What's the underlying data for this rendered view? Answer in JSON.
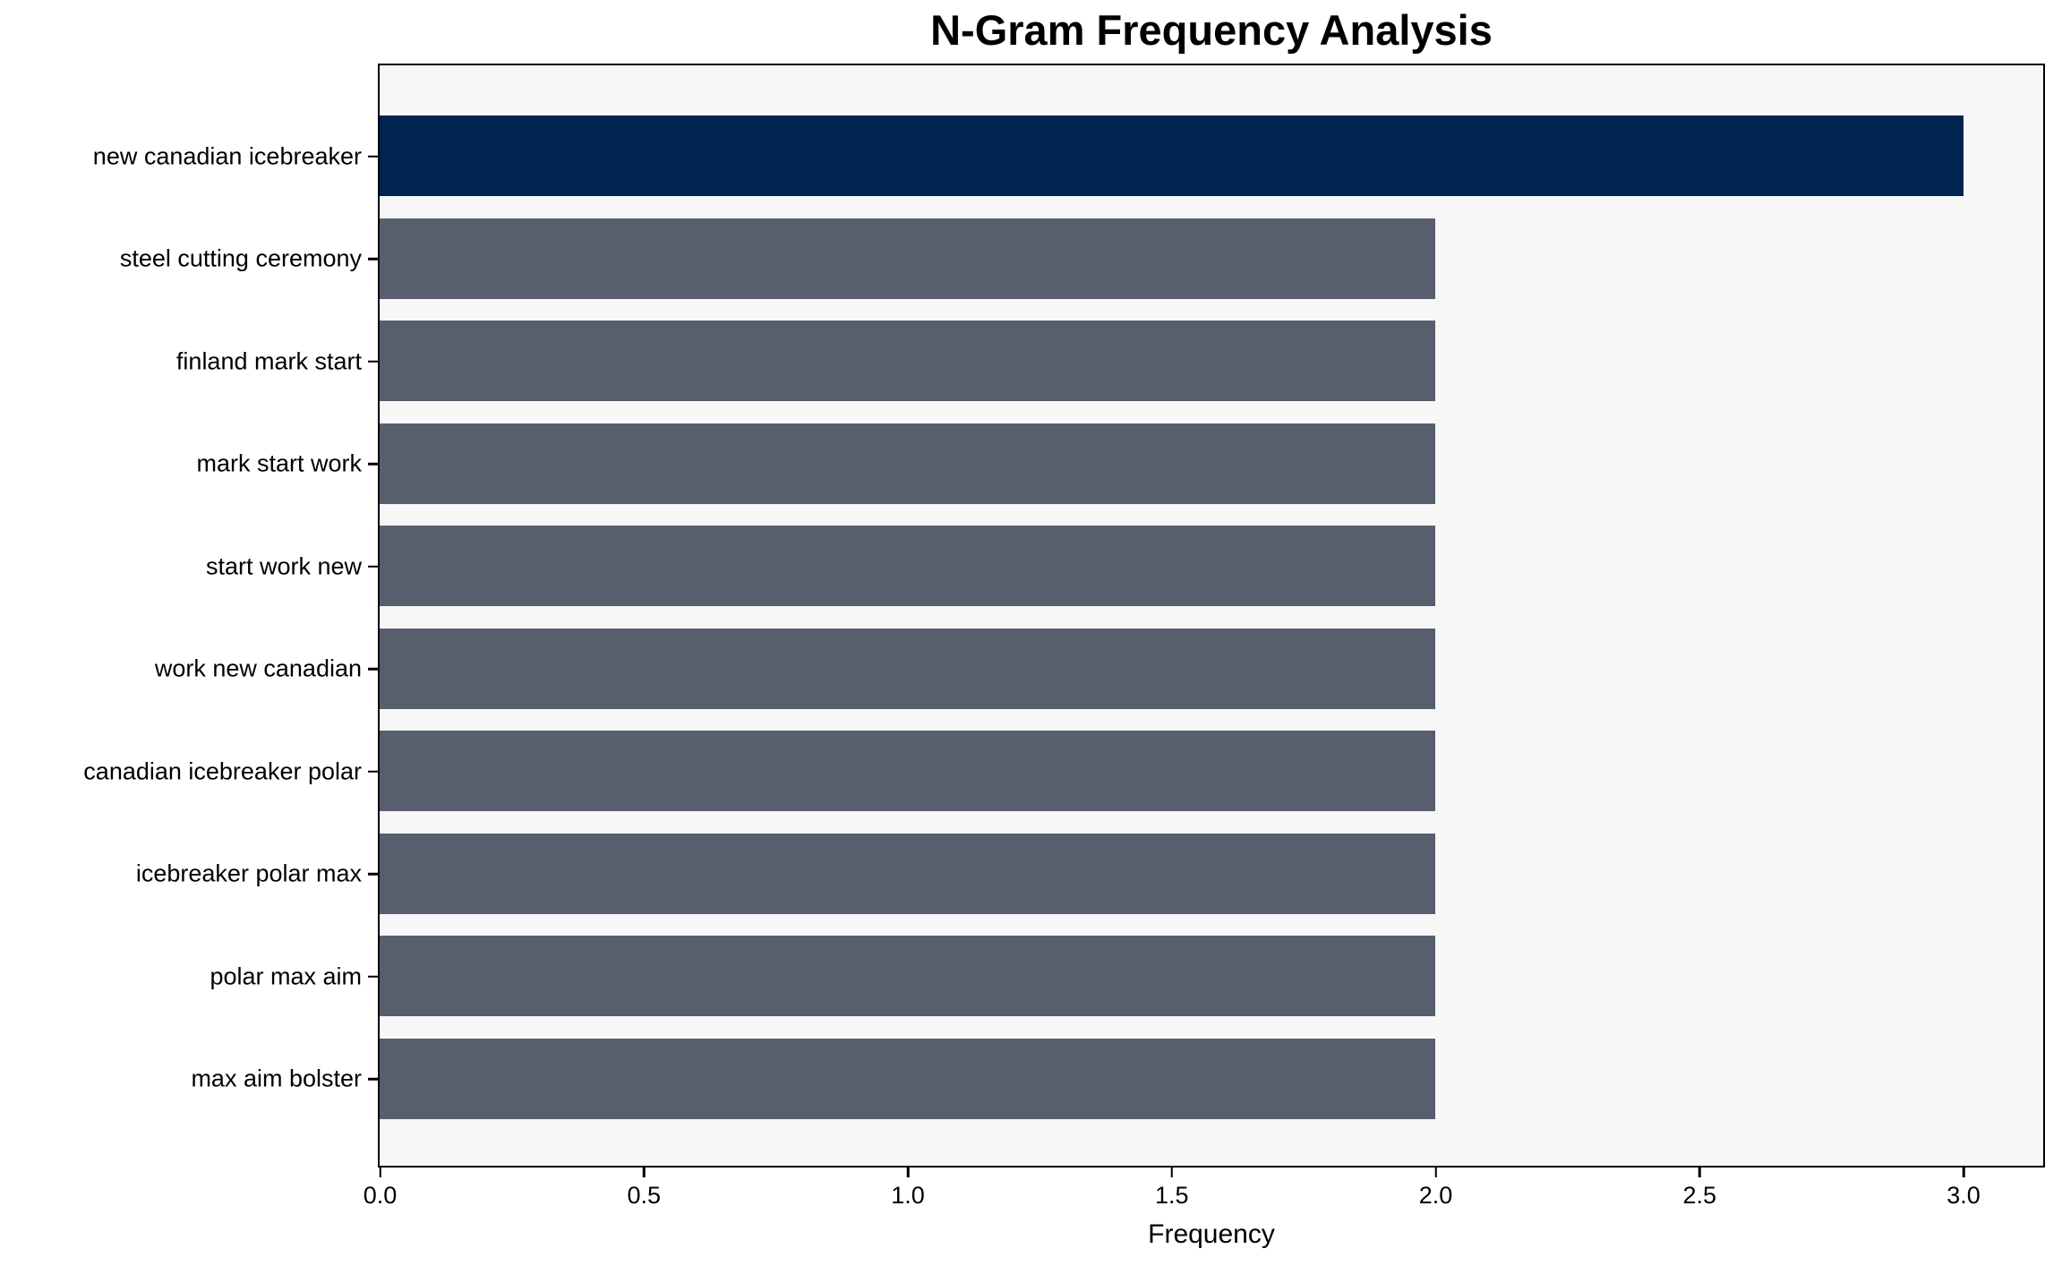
{
  "title": "N-Gram Frequency Analysis",
  "colors": {
    "highlight_bar": "#00234f",
    "default_bar": "#575e6e",
    "plot_background": "#f7f7f8",
    "figure_background": "#ffffff",
    "spine": "#000000",
    "text": "#000000"
  },
  "chart_data": {
    "type": "bar",
    "orientation": "horizontal",
    "title": "N-Gram Frequency Analysis",
    "xlabel": "Frequency",
    "ylabel": "",
    "categories": [
      "new canadian icebreaker",
      "steel cutting ceremony",
      "finland mark start",
      "mark start work",
      "start work new",
      "work new canadian",
      "canadian icebreaker polar",
      "icebreaker polar max",
      "polar max aim",
      "max aim bolster"
    ],
    "values": [
      3,
      2,
      2,
      2,
      2,
      2,
      2,
      2,
      2,
      2
    ],
    "bar_colors": [
      "#00234f",
      "#575e6e",
      "#575e6e",
      "#575e6e",
      "#575e6e",
      "#575e6e",
      "#575e6e",
      "#575e6e",
      "#575e6e",
      "#575e6e"
    ],
    "xlim": [
      0,
      3.15
    ],
    "x_tick_values": [
      0.0,
      0.5,
      1.0,
      1.5,
      2.0,
      2.5,
      3.0
    ],
    "x_tick_labels": [
      "0.0",
      "0.5",
      "1.0",
      "1.5",
      "2.0",
      "2.5",
      "3.0"
    ],
    "grid": false,
    "legend": null
  }
}
